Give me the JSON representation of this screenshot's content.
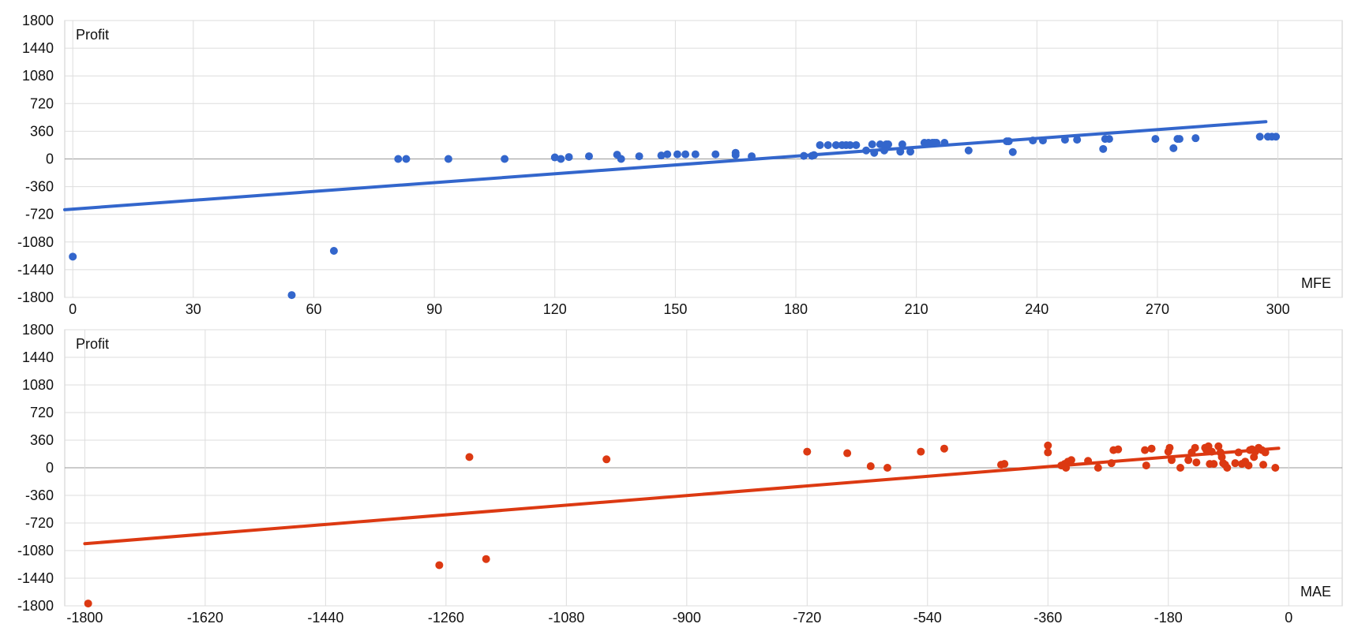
{
  "chart_data": [
    {
      "type": "scatter",
      "ylabel": "Profit",
      "xlabel": "MFE",
      "xlim": [
        -2,
        316
      ],
      "ylim": [
        -1800,
        1800
      ],
      "x_ticks": [
        "0",
        "30",
        "60",
        "90",
        "120",
        "150",
        "180",
        "210",
        "240",
        "270",
        "300"
      ],
      "x_tick_values": [
        0,
        30,
        60,
        90,
        120,
        150,
        180,
        210,
        240,
        270,
        300
      ],
      "y_ticks": [
        "1800",
        "1440",
        "1080",
        "720",
        "360",
        "0",
        "-360",
        "-720",
        "-1080",
        "-1440",
        "-1800"
      ],
      "y_tick_values": [
        1800,
        1440,
        1080,
        720,
        360,
        0,
        -360,
        -720,
        -1080,
        -1440,
        -1800
      ],
      "grid": true,
      "color": "#3366cc",
      "trendline": {
        "x": [
          -2,
          297
        ],
        "y": [
          -660,
          485
        ]
      },
      "points": [
        [
          0,
          -1270
        ],
        [
          54.5,
          -1770
        ],
        [
          65,
          -1195
        ],
        [
          81,
          0
        ],
        [
          83,
          0
        ],
        [
          93.5,
          0
        ],
        [
          107.5,
          0
        ],
        [
          120,
          20
        ],
        [
          121.5,
          0
        ],
        [
          123.5,
          25
        ],
        [
          128.5,
          35
        ],
        [
          135.5,
          55
        ],
        [
          136.5,
          0
        ],
        [
          141,
          35
        ],
        [
          146.5,
          45
        ],
        [
          148,
          60
        ],
        [
          150.5,
          60
        ],
        [
          152.5,
          60
        ],
        [
          155,
          60
        ],
        [
          160,
          60
        ],
        [
          165,
          50
        ],
        [
          165,
          80
        ],
        [
          169,
          35
        ],
        [
          182,
          40
        ],
        [
          184,
          40
        ],
        [
          184.5,
          50
        ],
        [
          186,
          180
        ],
        [
          188,
          180
        ],
        [
          190,
          180
        ],
        [
          191.5,
          180
        ],
        [
          192.5,
          180
        ],
        [
          193.5,
          180
        ],
        [
          195,
          180
        ],
        [
          197.5,
          110
        ],
        [
          199,
          190
        ],
        [
          199.5,
          80
        ],
        [
          201,
          190
        ],
        [
          202,
          110
        ],
        [
          202.5,
          190
        ],
        [
          203,
          190
        ],
        [
          206,
          95
        ],
        [
          206.5,
          190
        ],
        [
          208.5,
          95
        ],
        [
          212,
          210
        ],
        [
          213,
          210
        ],
        [
          214,
          210
        ],
        [
          214.5,
          210
        ],
        [
          215,
          210
        ],
        [
          217,
          210
        ],
        [
          223,
          110
        ],
        [
          232.5,
          230
        ],
        [
          233,
          230
        ],
        [
          234,
          90
        ],
        [
          239,
          240
        ],
        [
          241.5,
          240
        ],
        [
          247,
          250
        ],
        [
          250,
          250
        ],
        [
          256.5,
          130
        ],
        [
          257,
          260
        ],
        [
          258,
          260
        ],
        [
          269.5,
          260
        ],
        [
          274,
          140
        ],
        [
          275,
          260
        ],
        [
          275.5,
          260
        ],
        [
          279.5,
          270
        ],
        [
          295.5,
          290
        ],
        [
          297.5,
          290
        ],
        [
          298.5,
          290
        ],
        [
          299.5,
          290
        ]
      ]
    },
    {
      "type": "scatter",
      "ylabel": "Profit",
      "xlabel": "MAE",
      "xlim": [
        -1830,
        80
      ],
      "ylim": [
        -1800,
        1800
      ],
      "x_ticks": [
        "-1800",
        "-1620",
        "-1440",
        "-1260",
        "-1080",
        "-900",
        "-720",
        "-540",
        "-360",
        "-180",
        "0"
      ],
      "x_tick_values": [
        -1800,
        -1620,
        -1440,
        -1260,
        -1080,
        -900,
        -720,
        -540,
        -360,
        -180,
        0
      ],
      "y_ticks": [
        "1800",
        "1440",
        "1080",
        "720",
        "360",
        "0",
        "-360",
        "-720",
        "-1080",
        "-1440",
        "-1800"
      ],
      "y_tick_values": [
        1800,
        1440,
        1080,
        720,
        360,
        0,
        -360,
        -720,
        -1080,
        -1440,
        -1800
      ],
      "grid": true,
      "color": "#dc3912",
      "trendline": {
        "x": [
          -1800,
          -15
        ],
        "y": [
          -990,
          255
        ]
      },
      "points": [
        [
          -1795,
          -1770
        ],
        [
          -1270,
          -1270
        ],
        [
          -1225,
          140
        ],
        [
          -1200,
          -1190
        ],
        [
          -1020,
          110
        ],
        [
          -720,
          210
        ],
        [
          -660,
          190
        ],
        [
          -625,
          20
        ],
        [
          -600,
          0
        ],
        [
          -550,
          210
        ],
        [
          -515,
          250
        ],
        [
          -430,
          40
        ],
        [
          -425,
          50
        ],
        [
          -360,
          290
        ],
        [
          -360,
          200
        ],
        [
          -340,
          30
        ],
        [
          -335,
          50
        ],
        [
          -333,
          0
        ],
        [
          -330,
          80
        ],
        [
          -325,
          100
        ],
        [
          -300,
          90
        ],
        [
          -285,
          0
        ],
        [
          -265,
          60
        ],
        [
          -262,
          230
        ],
        [
          -255,
          240
        ],
        [
          -215,
          230
        ],
        [
          -213,
          30
        ],
        [
          -205,
          250
        ],
        [
          -180,
          210
        ],
        [
          -178,
          260
        ],
        [
          -175,
          100
        ],
        [
          -162,
          0
        ],
        [
          -150,
          100
        ],
        [
          -145,
          200
        ],
        [
          -140,
          260
        ],
        [
          -138,
          70
        ],
        [
          -125,
          260
        ],
        [
          -123,
          230
        ],
        [
          -120,
          280
        ],
        [
          -118,
          50
        ],
        [
          -115,
          210
        ],
        [
          -112,
          50
        ],
        [
          -105,
          280
        ],
        [
          -102,
          200
        ],
        [
          -100,
          140
        ],
        [
          -98,
          60
        ],
        [
          -95,
          40
        ],
        [
          -92,
          0
        ],
        [
          -80,
          60
        ],
        [
          -75,
          200
        ],
        [
          -70,
          50
        ],
        [
          -65,
          80
        ],
        [
          -60,
          30
        ],
        [
          -58,
          230
        ],
        [
          -55,
          240
        ],
        [
          -52,
          140
        ],
        [
          -50,
          210
        ],
        [
          -45,
          260
        ],
        [
          -40,
          230
        ],
        [
          -38,
          40
        ],
        [
          -35,
          200
        ],
        [
          -20,
          0
        ]
      ]
    }
  ]
}
